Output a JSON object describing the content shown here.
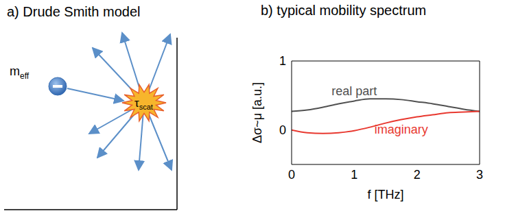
{
  "diagram": {
    "title": "a)  Drude Smith model",
    "particle": {
      "text": "m",
      "subscript": "eff"
    },
    "scatterer": {
      "text": "τ",
      "subscript": "scat"
    }
  },
  "chart_data": {
    "type": "line",
    "title": "b) typical mobility spectrum",
    "x_label": "f [THz]",
    "y_label": "Δσ~μ [a.u.]",
    "x": [
      0,
      0.25,
      0.5,
      0.75,
      1,
      1.25,
      1.5,
      1.75,
      2,
      2.25,
      2.5,
      2.75,
      3
    ],
    "series": [
      {
        "name": "real part",
        "color": "#505050",
        "values": [
          0.27,
          0.29,
          0.33,
          0.38,
          0.42,
          0.45,
          0.45,
          0.44,
          0.41,
          0.38,
          0.34,
          0.3,
          0.27
        ]
      },
      {
        "name": "imaginary",
        "color": "#e8382f",
        "values": [
          0,
          -0.04,
          -0.05,
          -0.04,
          -0.01,
          0.04,
          0.1,
          0.15,
          0.19,
          0.22,
          0.25,
          0.26,
          0.27
        ]
      }
    ],
    "xlim": [
      0,
      3
    ],
    "xticks": [
      0,
      1,
      2,
      3
    ],
    "ylim": [
      -0.5,
      1
    ],
    "yticks": [
      0,
      1
    ],
    "grid": false,
    "legend": false
  }
}
